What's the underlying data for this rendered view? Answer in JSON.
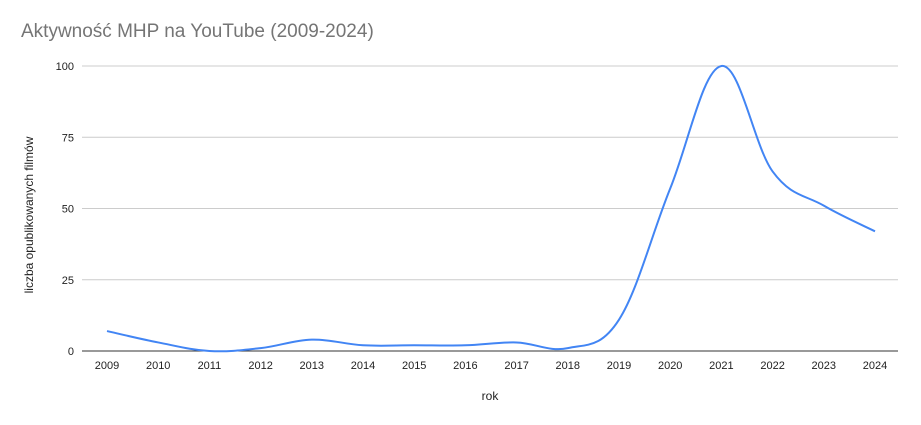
{
  "chart_data": {
    "type": "line",
    "title": "Aktywność MHP na YouTube (2009-2024)",
    "xlabel": "rok",
    "ylabel": "liczba opublikowanych filmów",
    "categories": [
      "2009",
      "2010",
      "2011",
      "2012",
      "2013",
      "2014",
      "2015",
      "2016",
      "2017",
      "2018",
      "2019",
      "2020",
      "2021",
      "2022",
      "2023",
      "2024"
    ],
    "values": [
      7,
      3,
      0,
      1,
      4,
      2,
      2,
      2,
      3,
      1,
      11,
      57,
      100,
      63,
      51,
      42
    ],
    "yticks": [
      0,
      25,
      50,
      75,
      100
    ],
    "ylim": [
      0,
      100
    ],
    "grid": true,
    "legend": "none",
    "line_color": "#4285f4"
  }
}
